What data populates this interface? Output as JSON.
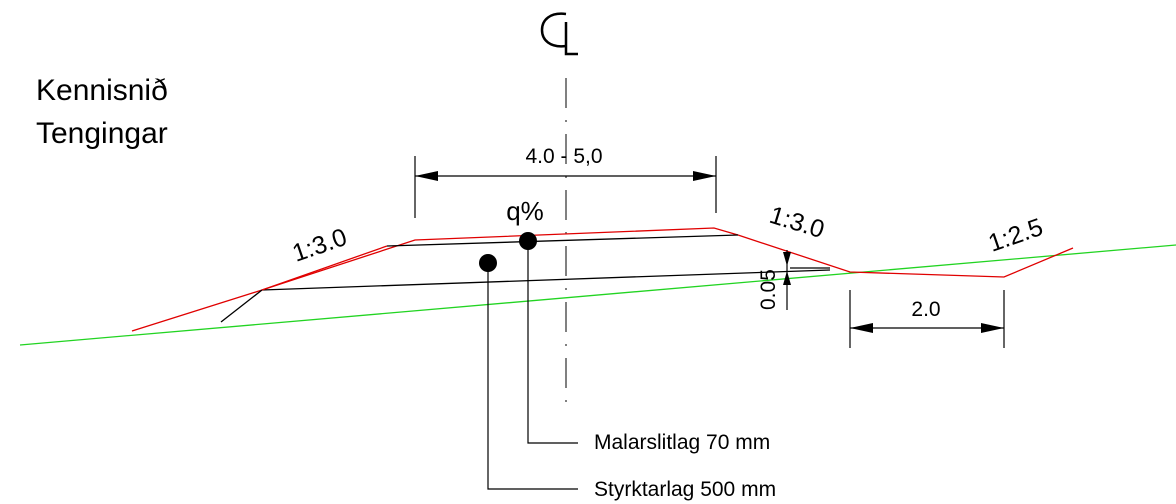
{
  "diagram": {
    "centerline_symbol": "CL",
    "title_line1": "Kennisnið",
    "title_line2": "Tengingar",
    "width_dimension": "4.0 - 5,0",
    "crossfall_label": "q%",
    "slope_left": "1:3.0",
    "slope_right_inner": "1:3.0",
    "slope_right_outer": "1:2.5",
    "depth_dimension": "0.05",
    "ditch_dimension": "2.0",
    "layer_top_label": "Malarslitlag 70 mm",
    "layer_base_label": "Styrktarlag 500 mm"
  },
  "colors": {
    "ground": "#22d422",
    "design_surface": "#e00000",
    "construction": "#000000"
  }
}
